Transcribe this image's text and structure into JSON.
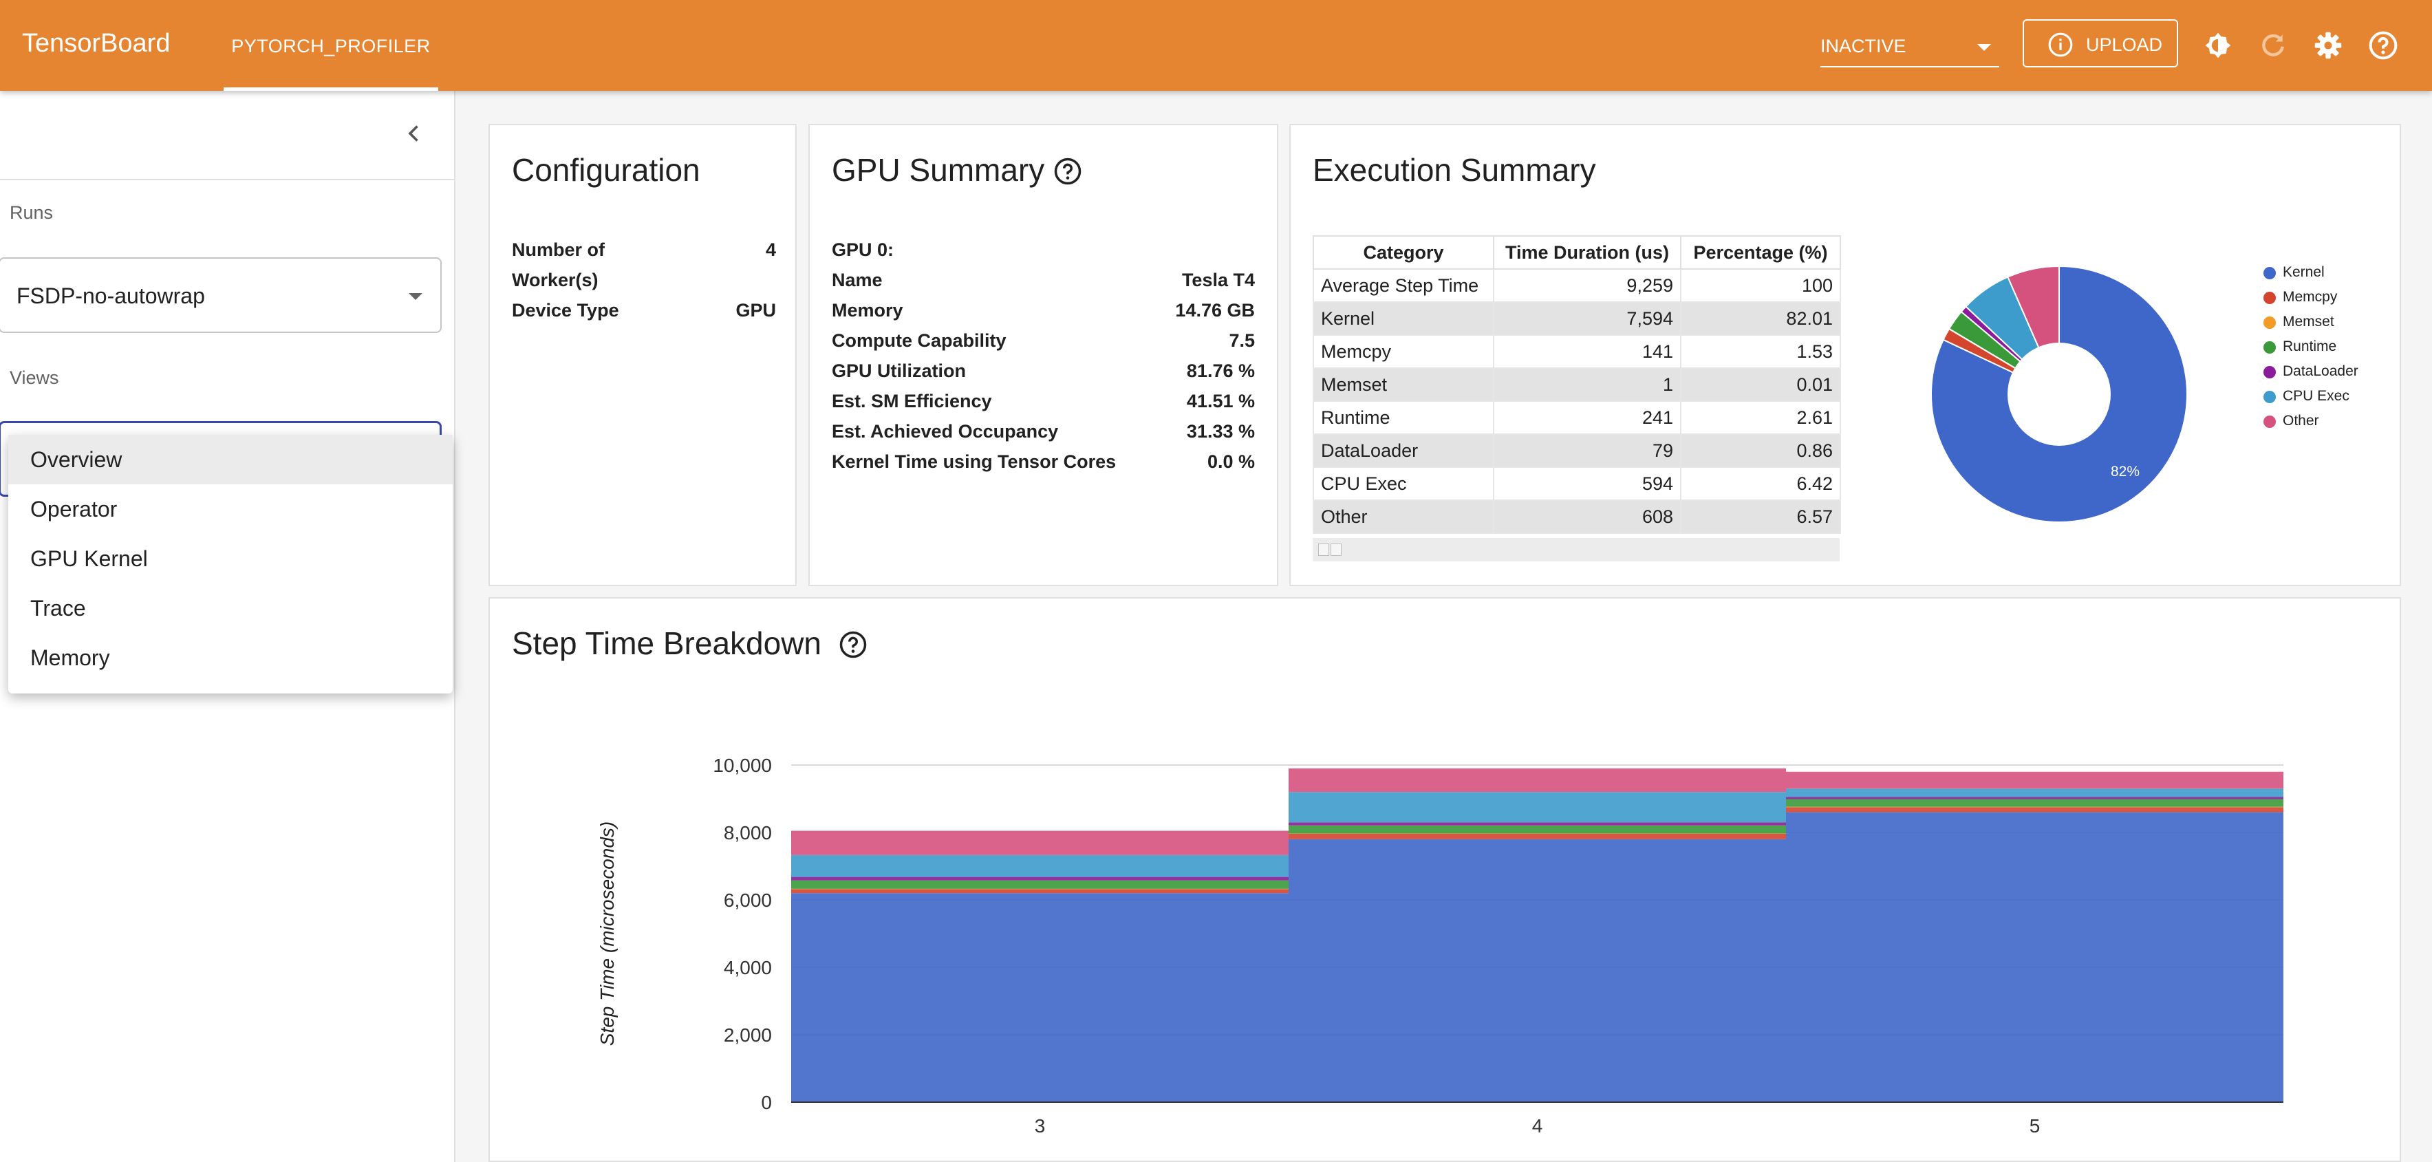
{
  "topbar": {
    "brand": "TensorBoard",
    "plugin_tab": "PYTORCH_PROFILER",
    "run_state": "INACTIVE",
    "upload_label": "UPLOAD"
  },
  "sidebar": {
    "runs_label": "Runs",
    "selected_run": "FSDP-no-autowrap",
    "views_label": "Views",
    "views_options": [
      "Overview",
      "Operator",
      "GPU Kernel",
      "Trace",
      "Memory"
    ],
    "selected_view": "Overview"
  },
  "configuration": {
    "title": "Configuration",
    "workers_label_line1": "Number of",
    "workers_label_line2": "Worker(s)",
    "workers_value": "4",
    "device_label": "Device Type",
    "device_value": "GPU"
  },
  "gpu_summary": {
    "title": "GPU Summary",
    "gpu_header": "GPU 0:",
    "rows": [
      {
        "label": "Name",
        "value": "Tesla T4"
      },
      {
        "label": "Memory",
        "value": "14.76 GB"
      },
      {
        "label": "Compute Capability",
        "value": "7.5"
      },
      {
        "label": "GPU Utilization",
        "value": "81.76 %"
      },
      {
        "label": "Est. SM Efficiency",
        "value": "41.51 %"
      },
      {
        "label": "Est. Achieved Occupancy",
        "value": "31.33 %"
      },
      {
        "label": "Kernel Time using Tensor Cores",
        "value": "0.0 %"
      }
    ]
  },
  "execution_summary": {
    "title": "Execution Summary",
    "headers": [
      "Category",
      "Time Duration (us)",
      "Percentage (%)"
    ],
    "rows": [
      [
        "Average Step Time",
        "9,259",
        "100"
      ],
      [
        "Kernel",
        "7,594",
        "82.01"
      ],
      [
        "Memcpy",
        "141",
        "1.53"
      ],
      [
        "Memset",
        "1",
        "0.01"
      ],
      [
        "Runtime",
        "241",
        "2.61"
      ],
      [
        "DataLoader",
        "79",
        "0.86"
      ],
      [
        "CPU Exec",
        "594",
        "6.42"
      ],
      [
        "Other",
        "608",
        "6.57"
      ]
    ],
    "pie_label": "82%"
  },
  "colors": {
    "accent": "#e68531",
    "Kernel": "#3f66c9",
    "Memcpy": "#d4452e",
    "Memset": "#f29b26",
    "Runtime": "#3a9a3a",
    "DataLoader": "#8a1b9a",
    "CPU Exec": "#3e9ccc",
    "Other": "#d6527e"
  },
  "chart_data": [
    {
      "type": "pie",
      "title": "Execution Summary",
      "categories": [
        "Kernel",
        "Memcpy",
        "Memset",
        "Runtime",
        "DataLoader",
        "CPU Exec",
        "Other"
      ],
      "values": [
        82.01,
        1.53,
        0.01,
        2.61,
        0.86,
        6.42,
        6.57
      ],
      "donut": true,
      "slice_label": "82%",
      "legend": [
        "Kernel",
        "Memcpy",
        "Memset",
        "Runtime",
        "DataLoader",
        "CPU Exec",
        "Other"
      ],
      "legend_position": "right"
    },
    {
      "type": "area",
      "stacked": true,
      "step": true,
      "title": "Step Time Breakdown",
      "ylabel": "Step Time (microseconds)",
      "xlabel": "",
      "categories": [
        "3",
        "4",
        "5"
      ],
      "ylim": [
        0,
        10000
      ],
      "yticks": [
        "0",
        "2,000",
        "4,000",
        "6,000",
        "8,000",
        "10,000"
      ],
      "grid": true,
      "series": [
        {
          "name": "Kernel",
          "values": [
            6200,
            7800,
            8600
          ]
        },
        {
          "name": "Memcpy",
          "values": [
            120,
            160,
            150
          ]
        },
        {
          "name": "Memset",
          "values": [
            10,
            10,
            10
          ]
        },
        {
          "name": "Runtime",
          "values": [
            250,
            240,
            230
          ]
        },
        {
          "name": "DataLoader",
          "values": [
            100,
            90,
            60
          ]
        },
        {
          "name": "CPU Exec",
          "values": [
            650,
            900,
            250
          ]
        },
        {
          "name": "Other",
          "values": [
            720,
            700,
            500
          ]
        }
      ]
    }
  ]
}
